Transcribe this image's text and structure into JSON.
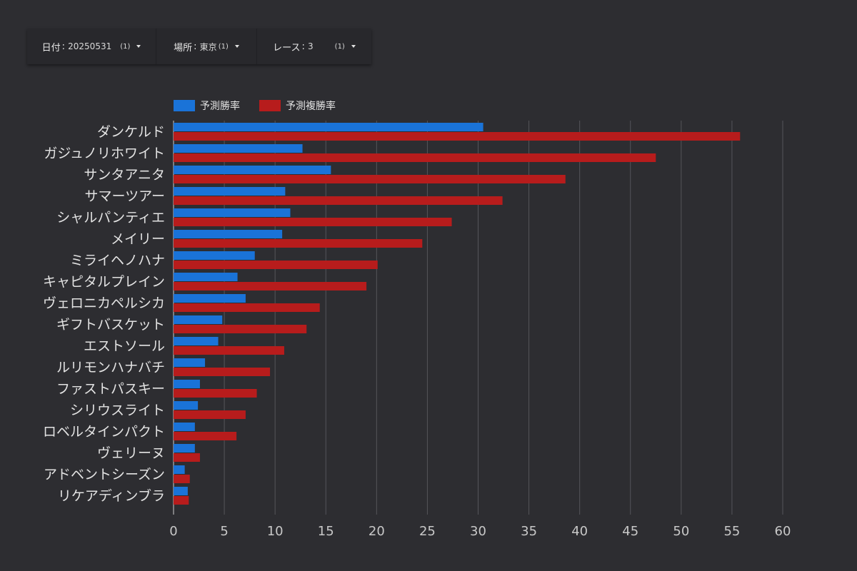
{
  "filters": [
    {
      "label": "日付",
      "value": "20250531",
      "count": "(1)"
    },
    {
      "label": "場所",
      "value": "東京",
      "count": "(1)"
    },
    {
      "label": "レース",
      "value": "3",
      "count": "(1)"
    }
  ],
  "colors": {
    "win": "#1a73d8",
    "place": "#b71c1c",
    "grid": "#55555a",
    "axis": "#9a9a9a"
  },
  "chart_data": {
    "type": "bar",
    "orientation": "horizontal",
    "categories": [
      "ダンケルド",
      "ガジュノリホワイト",
      "サンタアニタ",
      "サマーツアー",
      "シャルパンティエ",
      "メイリー",
      "ミライヘノハナ",
      "キャピタルプレイン",
      "ヴェロニカペルシカ",
      "ギフトバスケット",
      "エストソール",
      "ルリモンハナバチ",
      "ファストパスキー",
      "シリウスライト",
      "ロベルタインパクト",
      "ヴェリーヌ",
      "アドベントシーズン",
      "リケアディンブラ"
    ],
    "series": [
      {
        "name": "予測勝率",
        "values": [
          30.5,
          12.7,
          15.5,
          11.0,
          11.5,
          10.7,
          8.0,
          6.3,
          7.1,
          4.8,
          4.4,
          3.1,
          2.6,
          2.4,
          2.1,
          2.1,
          1.1,
          1.4
        ]
      },
      {
        "name": "予測複勝率",
        "values": [
          55.8,
          47.5,
          38.6,
          32.4,
          27.4,
          24.5,
          20.1,
          19.0,
          14.4,
          13.1,
          10.9,
          9.5,
          8.2,
          7.1,
          6.2,
          2.6,
          1.6,
          1.5
        ]
      }
    ],
    "xlim": [
      0,
      60
    ],
    "xticks": [
      0,
      5,
      10,
      15,
      20,
      25,
      30,
      35,
      40,
      45,
      50,
      55,
      60
    ],
    "grid": true,
    "legend": "top-left"
  }
}
